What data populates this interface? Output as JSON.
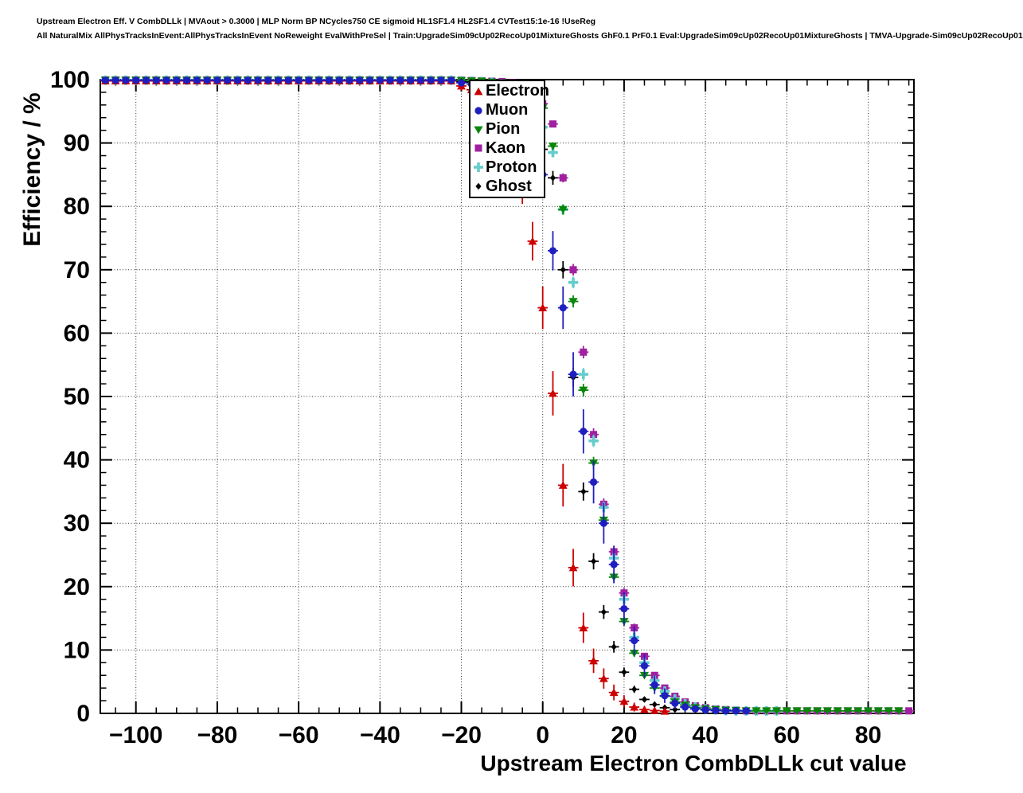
{
  "header": {
    "line1": "Upstream Electron Eff. V CombDLLk | MVAout > 0.3000 | MLP Norm BP NCycles750 CE sigmoid HL1SF1.4 HL2SF1.4 CVTest15:1e-16 !UseReg",
    "line2": "All NaturalMix AllPhysTracksInEvent:AllPhysTracksInEvent NoReweight EvalWithPreSel | Train:UpgradeSim09cUp02RecoUp01MixtureGhosts GhF0.1 PrF0.1 Eval:UpgradeSim09cUp02RecoUp01MixtureGhosts | TMVA-Upgrade-Sim09cUp02RecoUp01"
  },
  "chart_data": {
    "type": "scatter",
    "title": "",
    "xlabel": "Upstream Electron CombDLLk cut value",
    "ylabel": "Efficiency / %",
    "xlim": [
      -108.75,
      91.25
    ],
    "ylim": [
      0,
      100
    ],
    "x_major_ticks": [
      -100,
      -80,
      -60,
      -40,
      -20,
      0,
      20,
      40,
      60,
      80
    ],
    "x_minor_step": 5,
    "y_major_ticks": [
      0,
      10,
      20,
      30,
      40,
      50,
      60,
      70,
      80,
      90,
      100
    ],
    "y_minor_step": 2,
    "grid": "dotted",
    "grid_color": "#333333",
    "frame_color": "#000000",
    "legend": {
      "position": "top-center",
      "entries": [
        "Electron",
        "Muon",
        "Pion",
        "Kaon",
        "Proton",
        "Ghost"
      ]
    },
    "series": [
      {
        "id": "kaon",
        "label": "Kaon",
        "color": "#a020a0",
        "marker": "square",
        "flat_left": {
          "from": -107.5,
          "to": -22.5,
          "step": 2.5,
          "y": 99.95,
          "e": 0.05
        },
        "points": [
          [
            -20,
            99.9,
            0.1
          ],
          [
            -17.5,
            99.85,
            0.1
          ],
          [
            -15,
            99.8,
            0.1
          ],
          [
            -12.5,
            99.75,
            0.1
          ],
          [
            -10,
            99.7,
            0.11
          ],
          [
            -7.5,
            99.5,
            0.14
          ],
          [
            -5,
            99,
            0.2
          ],
          [
            -2.5,
            98,
            0.28
          ],
          [
            0,
            96.2,
            0.38
          ],
          [
            2.5,
            93,
            0.51
          ],
          [
            5,
            84.5,
            0.72
          ],
          [
            7.5,
            70,
            0.92
          ],
          [
            10,
            57,
            0.99
          ],
          [
            12.5,
            44,
            0.99
          ],
          [
            15,
            33,
            0.94
          ],
          [
            17.5,
            25.5,
            0.87
          ],
          [
            20,
            19,
            0.78
          ],
          [
            22.5,
            13.5,
            0.68
          ],
          [
            25,
            9,
            0.57
          ],
          [
            27.5,
            6,
            0.47
          ],
          [
            30,
            4,
            0.39
          ],
          [
            32.5,
            2.7,
            0.32
          ],
          [
            35,
            1.8,
            0.27
          ],
          [
            37.5,
            1.2,
            0.22
          ],
          [
            40,
            0.9,
            0.19
          ],
          [
            42.5,
            0.7,
            0.17
          ],
          [
            45,
            0.6,
            0.15
          ],
          [
            47.5,
            0.5,
            0.14
          ]
        ],
        "flat_right": {
          "from": 50,
          "to": 90,
          "step": 2.5,
          "y": 0.4,
          "e": 0.1
        }
      },
      {
        "id": "proton",
        "label": "Proton",
        "color": "#66cccc",
        "marker": "plus",
        "flat_left": {
          "from": -107.5,
          "to": -22.5,
          "step": 2.5,
          "y": 99.9,
          "e": 0.1
        },
        "points": [
          [
            -20,
            99.8,
            0.1
          ],
          [
            -17.5,
            99.75,
            0.1
          ],
          [
            -15,
            99.7,
            0.11
          ],
          [
            -12.5,
            99.6,
            0.13
          ],
          [
            -10,
            99.3,
            0.17
          ],
          [
            -7.5,
            98.6,
            0.24
          ],
          [
            -5,
            97.5,
            0.31
          ],
          [
            -2.5,
            95.5,
            0.41
          ],
          [
            0,
            92.5,
            0.53
          ],
          [
            2.5,
            88.5,
            0.64
          ],
          [
            5,
            79.5,
            0.81
          ],
          [
            7.5,
            68,
            0.93
          ],
          [
            10,
            53.5,
            1
          ],
          [
            12.5,
            43,
            0.99
          ],
          [
            15,
            32.5,
            0.94
          ],
          [
            17.5,
            24.5,
            0.86
          ],
          [
            20,
            18,
            0.77
          ],
          [
            22.5,
            12,
            0.65
          ],
          [
            25,
            8,
            0.54
          ],
          [
            27.5,
            5.2,
            0.44
          ],
          [
            30,
            3.5,
            0.37
          ],
          [
            32.5,
            2.3,
            0.3
          ],
          [
            35,
            1.5,
            0.24
          ],
          [
            37.5,
            1,
            0.2
          ],
          [
            40,
            0.7,
            0.17
          ],
          [
            42.5,
            0.55,
            0.15
          ],
          [
            45,
            0.45,
            0.13
          ],
          [
            47.5,
            0.4,
            0.13
          ]
        ],
        "flat_right": {
          "from": 50,
          "to": 57.5,
          "step": 2.5,
          "y": 0.4,
          "e": 0.13
        }
      },
      {
        "id": "pion",
        "label": "Pion",
        "color": "#0a870a",
        "marker": "triangle-down",
        "flat_left": {
          "from": -107.5,
          "to": -22.5,
          "step": 2.5,
          "y": 99.9,
          "e": 0.1
        },
        "points": [
          [
            -20,
            99.85,
            0.08
          ],
          [
            -17.5,
            99.8,
            0.09
          ],
          [
            -15,
            99.75,
            0.1
          ],
          [
            -12.5,
            99.6,
            0.13
          ],
          [
            -10,
            99.5,
            0.14
          ],
          [
            -7.5,
            99.2,
            0.18
          ],
          [
            -5,
            98.8,
            0.22
          ],
          [
            -2.5,
            97.7,
            0.3
          ],
          [
            0,
            95.5,
            0.42
          ],
          [
            2.5,
            89.5,
            0.61
          ],
          [
            5,
            79.5,
            0.81
          ],
          [
            7.5,
            65,
            0.95
          ],
          [
            10,
            51,
            1
          ],
          [
            12.5,
            39.5,
            0.98
          ],
          [
            15,
            30.5,
            0.92
          ],
          [
            17.5,
            21.5,
            0.82
          ],
          [
            20,
            14.5,
            0.7
          ],
          [
            22.5,
            9.5,
            0.59
          ],
          [
            25,
            6,
            0.48
          ],
          [
            27.5,
            4,
            0.39
          ],
          [
            30,
            2.7,
            0.32
          ],
          [
            32.5,
            1.8,
            0.27
          ],
          [
            35,
            1.3,
            0.23
          ],
          [
            37.5,
            0.9,
            0.19
          ],
          [
            40,
            0.7,
            0.17
          ],
          [
            42.5,
            0.6,
            0.15
          ],
          [
            45,
            0.5,
            0.14
          ],
          [
            47.5,
            0.45,
            0.13
          ]
        ],
        "flat_right": {
          "from": 50,
          "to": 87.5,
          "step": 2.5,
          "y": 0.4,
          "e": 0.13
        }
      },
      {
        "id": "ghost",
        "label": "Ghost",
        "color": "#000000",
        "marker": "diamond",
        "flat_left": {
          "from": -107.5,
          "to": -22.5,
          "step": 2.5,
          "y": 99.8,
          "e": 0.1
        },
        "points": [
          [
            -20,
            99.7,
            0.16
          ],
          [
            -17.5,
            99.6,
            0.19
          ],
          [
            -15,
            99.4,
            0.23
          ],
          [
            -12.5,
            99.1,
            0.28
          ],
          [
            -10,
            98.5,
            0.37
          ],
          [
            -7.5,
            97.5,
            0.47
          ],
          [
            -5,
            95.8,
            0.6
          ],
          [
            -2.5,
            93,
            0.77
          ],
          [
            0,
            89,
            0.94
          ],
          [
            2.5,
            84.5,
            1.09
          ],
          [
            5,
            70,
            1.37
          ],
          [
            7.5,
            53,
            1.5
          ],
          [
            10,
            35,
            1.43
          ],
          [
            12.5,
            24,
            1.28
          ],
          [
            15,
            16,
            1.1
          ],
          [
            17.5,
            10.5,
            0.92
          ],
          [
            20,
            6.5,
            0.74
          ],
          [
            22.5,
            3.8,
            0.57
          ],
          [
            25,
            2.2,
            0.44
          ],
          [
            27.5,
            1.4,
            0.35
          ],
          [
            30,
            0.9,
            0.28
          ],
          [
            32.5,
            0.6,
            0.23
          ]
        ],
        "flat_right": null
      },
      {
        "id": "electron",
        "label": "Electron",
        "color": "#cc0000",
        "marker": "triangle-up",
        "flat_left": {
          "from": -107.5,
          "to": -22.5,
          "step": 2.5,
          "y": 99.8,
          "e": 0.3
        },
        "points": [
          [
            -20,
            99,
            0.7
          ],
          [
            -17.5,
            98.4,
            0.88
          ],
          [
            -15,
            97.3,
            1.14
          ],
          [
            -12.5,
            95.5,
            1.45
          ],
          [
            -10,
            93,
            1.79
          ],
          [
            -7.5,
            89,
            2.19
          ],
          [
            -5,
            83,
            2.63
          ],
          [
            -2.5,
            74.5,
            3.05
          ],
          [
            0,
            64,
            3.36
          ],
          [
            2.5,
            50.5,
            3.5
          ],
          [
            5,
            36,
            3.36
          ],
          [
            7.5,
            23,
            2.95
          ],
          [
            10,
            13.5,
            2.39
          ],
          [
            12.5,
            8.3,
            1.93
          ],
          [
            15,
            5.5,
            1.6
          ],
          [
            17.5,
            3.3,
            1.25
          ],
          [
            20,
            1.9,
            0.97
          ],
          [
            22.5,
            1,
            0.7
          ],
          [
            25,
            0.6,
            0.54
          ],
          [
            27.5,
            0.45,
            0.47
          ],
          [
            30,
            0.35,
            0.41
          ]
        ],
        "flat_right": null
      },
      {
        "id": "muon",
        "label": "Muon",
        "color": "#1f1fbf",
        "marker": "circle",
        "flat_left": {
          "from": -107.5,
          "to": -22.5,
          "step": 2.5,
          "y": 99.9,
          "e": 0.2
        },
        "points": [
          [
            -20,
            99.5,
            0.49
          ],
          [
            -17.5,
            99.3,
            0.58
          ],
          [
            -15,
            99,
            0.7
          ],
          [
            -12.5,
            98.4,
            0.88
          ],
          [
            -10,
            97.5,
            1.09
          ],
          [
            -7.5,
            96,
            1.37
          ],
          [
            -5,
            93,
            1.79
          ],
          [
            -2.5,
            89.5,
            2.15
          ],
          [
            0,
            85,
            2.5
          ],
          [
            2.5,
            73,
            3.11
          ],
          [
            5,
            64,
            3.36
          ],
          [
            7.5,
            53.5,
            3.49
          ],
          [
            10,
            44.5,
            3.48
          ],
          [
            12.5,
            36.5,
            3.37
          ],
          [
            15,
            30,
            3.21
          ],
          [
            17.5,
            23.5,
            2.97
          ],
          [
            20,
            16.5,
            2.6
          ],
          [
            22.5,
            11.5,
            2.23
          ],
          [
            25,
            7.5,
            1.84
          ],
          [
            27.5,
            4.5,
            1.45
          ],
          [
            30,
            2.8,
            1.15
          ],
          [
            32.5,
            1.6,
            0.88
          ],
          [
            35,
            1,
            0.7
          ],
          [
            37.5,
            0.7,
            0.58
          ],
          [
            40,
            0.55,
            0.52
          ],
          [
            42.5,
            0.45,
            0.47
          ],
          [
            45,
            0.4,
            0.44
          ],
          [
            47.5,
            0.4,
            0.44
          ],
          [
            50,
            0.4,
            0.44
          ]
        ],
        "flat_right": null
      }
    ],
    "x_error_half_width": 1.25
  }
}
